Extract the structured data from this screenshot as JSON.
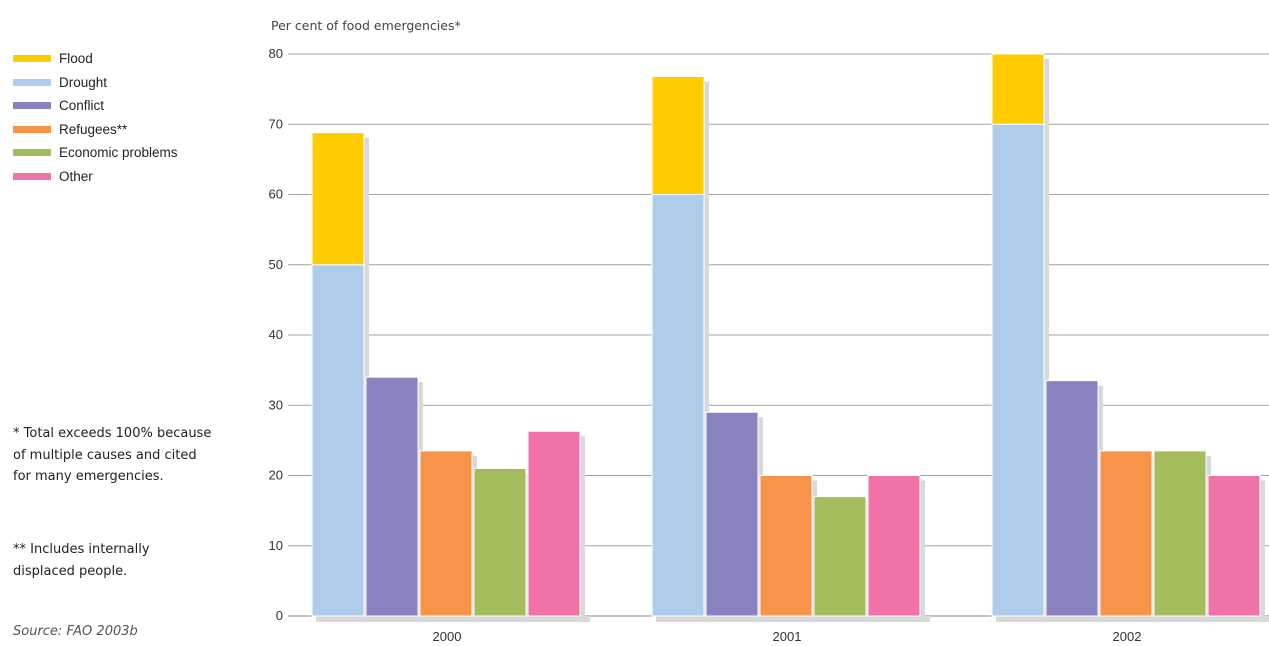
{
  "chart_data": {
    "type": "bar",
    "title": "",
    "ylabel": "Per cent of food emergencies*",
    "xlabel": "",
    "ylim": [
      0,
      80
    ],
    "yticks": [
      0,
      10,
      20,
      30,
      40,
      50,
      60,
      70,
      80
    ],
    "grid": true,
    "legend_position": "left",
    "categories": [
      "2000",
      "2001",
      "2002"
    ],
    "series": [
      {
        "name": "Flood",
        "color": "#FFCC00",
        "stacked_on": "Drought",
        "values": [
          18.8,
          16.8,
          10.0
        ]
      },
      {
        "name": "Drought",
        "color": "#ADCDEB",
        "values": [
          50,
          60,
          70
        ]
      },
      {
        "name": "Conflict",
        "color": "#8883BF",
        "values": [
          34,
          29,
          33.5
        ]
      },
      {
        "name": "Refugees**",
        "color": "#F7944A",
        "values": [
          23.5,
          20,
          23.5
        ]
      },
      {
        "name": "Economic problems",
        "color": "#A5BC5C",
        "values": [
          21,
          17,
          23.5
        ]
      },
      {
        "name": "Other",
        "color": "#EF72A9",
        "values": [
          26.3,
          20,
          20
        ]
      }
    ]
  },
  "notes": {
    "total_note": "* Total exceeds 100% because of multiple causes and cited for many emergencies.",
    "idp_note": "** Includes internally displaced people."
  },
  "source": "Source: FAO 2003b"
}
